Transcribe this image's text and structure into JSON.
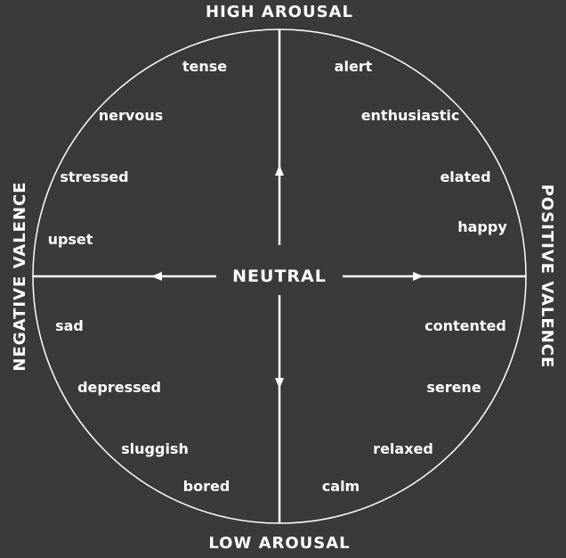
{
  "diagram": {
    "colors": {
      "background": "#3a3a3a",
      "line": "#ffffff",
      "text": "#ffffff"
    },
    "axes": {
      "high_arousal": "HIGH AROUSAL",
      "low_arousal": "LOW AROUSAL",
      "negative_valence": "NEGATIVE VALENCE",
      "positive_valence": "POSITIVE VALENCE",
      "center": "NEUTRAL"
    },
    "emotions": {
      "tense": "tense",
      "alert": "alert",
      "nervous": "nervous",
      "enthusiastic": "enthusiastic",
      "stressed": "stressed",
      "elated": "elated",
      "upset": "upset",
      "happy": "happy",
      "sad": "sad",
      "contented": "contented",
      "depressed": "depressed",
      "serene": "serene",
      "sluggish": "sluggish",
      "relaxed": "relaxed",
      "bored": "bored",
      "calm": "calm"
    }
  }
}
